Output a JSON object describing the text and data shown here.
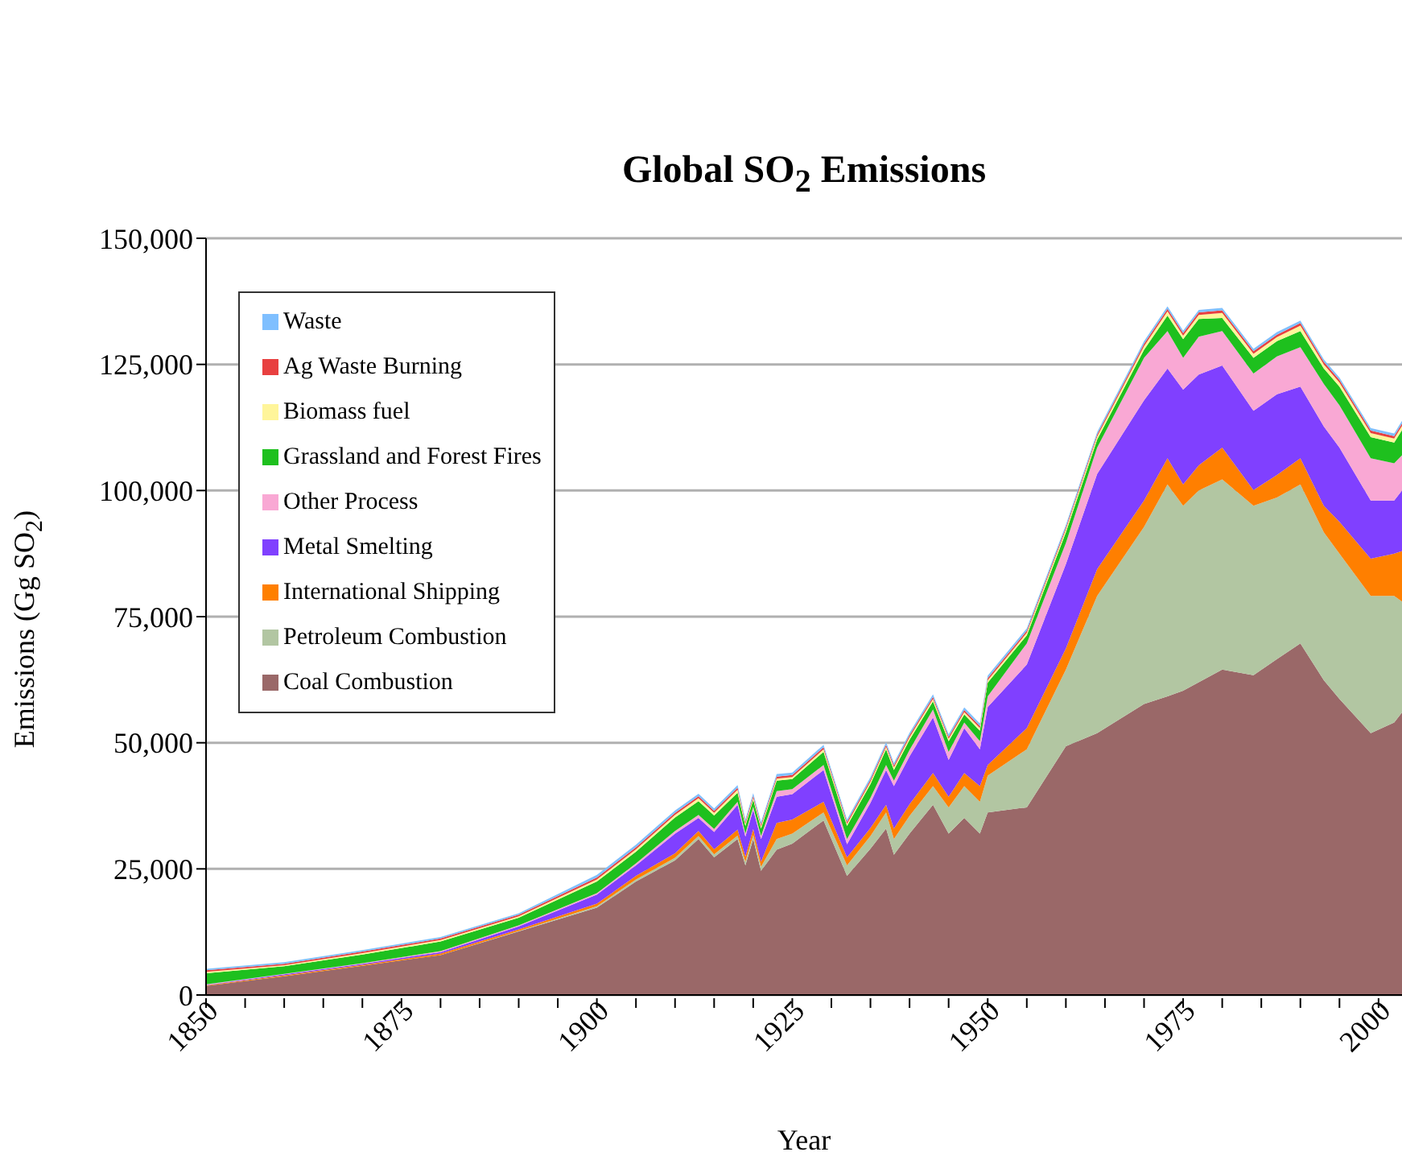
{
  "chart_data": {
    "type": "area",
    "stacked": true,
    "title": "Global SO$_{2}$ Emissions",
    "xlabel": "Year",
    "ylabel": "Emissions (Gg SO$_{2}$)",
    "x": [
      1850,
      1860,
      1870,
      1880,
      1890,
      1900,
      1905,
      1910,
      1913,
      1915,
      1918,
      1919,
      1920,
      1921,
      1923,
      1925,
      1929,
      1932,
      1935,
      1937,
      1938,
      1940,
      1943,
      1945,
      1947,
      1949,
      1950,
      1955,
      1960,
      1964,
      1970,
      1973,
      1975,
      1977,
      1980,
      1984,
      1987,
      1990,
      1993,
      1995,
      1999,
      2002,
      2003
    ],
    "series": [
      {
        "name": "Coal Combustion",
        "color": "#9a6868",
        "values": [
          1800,
          3700,
          5800,
          7900,
          12600,
          17300,
          22500,
          26700,
          30900,
          27300,
          30900,
          25700,
          30900,
          24600,
          28800,
          30000,
          34600,
          23600,
          29000,
          33000,
          27800,
          32000,
          37700,
          32000,
          35100,
          32000,
          36200,
          37200,
          49300,
          51900,
          57700,
          59200,
          60300,
          62000,
          64500,
          63400,
          66600,
          69700,
          62400,
          58700,
          51900,
          54000,
          56000
        ]
      },
      {
        "name": "Petroleum Combustion",
        "color": "#b2c6a2",
        "values": [
          0,
          0,
          0,
          0,
          100,
          300,
          400,
          500,
          600,
          600,
          700,
          700,
          800,
          800,
          2100,
          2000,
          1600,
          2100,
          2500,
          3200,
          3100,
          3500,
          3700,
          5200,
          6300,
          6300,
          7300,
          11500,
          15200,
          27200,
          35100,
          42000,
          36700,
          38000,
          37700,
          33600,
          32000,
          31500,
          29300,
          28800,
          27200,
          25100,
          22000
        ]
      },
      {
        "name": "International Shipping",
        "color": "#ff7f00",
        "values": [
          100,
          200,
          200,
          300,
          300,
          500,
          700,
          900,
          1000,
          1000,
          1200,
          1000,
          1200,
          1000,
          3200,
          2800,
          2100,
          1600,
          1600,
          1500,
          2100,
          2300,
          2600,
          2100,
          2600,
          3100,
          2100,
          4200,
          4200,
          5300,
          5200,
          5200,
          4200,
          5000,
          6300,
          3100,
          4500,
          5200,
          5300,
          6300,
          7400,
          8400,
          10000
        ]
      },
      {
        "name": "Metal Smelting",
        "color": "#8040ff",
        "values": [
          100,
          200,
          200,
          300,
          600,
          1800,
          2100,
          3900,
          2600,
          3400,
          4900,
          4000,
          3800,
          4500,
          5200,
          5000,
          6300,
          2600,
          5000,
          6900,
          8400,
          9500,
          11000,
          7300,
          8900,
          7300,
          11500,
          12600,
          16700,
          18900,
          19900,
          17800,
          18800,
          18000,
          16300,
          15700,
          16000,
          14200,
          15700,
          14700,
          11500,
          10500,
          12000
        ]
      },
      {
        "name": "Other Process",
        "color": "#f9a8d4",
        "values": [
          100,
          100,
          100,
          200,
          200,
          300,
          400,
          500,
          600,
          600,
          600,
          600,
          600,
          600,
          1100,
          1000,
          1000,
          1000,
          1000,
          1000,
          1100,
          1300,
          1600,
          1600,
          1100,
          1600,
          2100,
          4200,
          4200,
          5200,
          8400,
          7400,
          6300,
          7500,
          6800,
          7400,
          7500,
          7800,
          8400,
          8400,
          8400,
          7400,
          7000
        ]
      },
      {
        "name": "Grassland and Forest Fires",
        "color": "#1ec01e",
        "values": [
          2200,
          1500,
          1700,
          1900,
          1500,
          2300,
          2300,
          2700,
          2700,
          2700,
          1800,
          1500,
          1400,
          1500,
          2100,
          2000,
          2600,
          2600,
          2700,
          3100,
          2100,
          2000,
          1600,
          2100,
          1600,
          2100,
          2700,
          1600,
          2100,
          1600,
          1600,
          3100,
          3700,
          3500,
          2600,
          3100,
          3000,
          3200,
          3100,
          3700,
          4200,
          4100,
          5000
        ]
      },
      {
        "name": "Biomass fuel",
        "color": "#fff59a",
        "values": [
          300,
          200,
          300,
          300,
          300,
          400,
          500,
          500,
          600,
          500,
          600,
          400,
          400,
          400,
          400,
          400,
          500,
          400,
          500,
          500,
          500,
          500,
          500,
          500,
          500,
          500,
          500,
          500,
          600,
          600,
          700,
          800,
          700,
          800,
          1000,
          800,
          800,
          1100,
          800,
          800,
          800,
          800,
          800
        ]
      },
      {
        "name": "Ag Waste Burning",
        "color": "#e84040",
        "values": [
          300,
          300,
          300,
          300,
          300,
          400,
          400,
          400,
          400,
          400,
          400,
          400,
          400,
          400,
          400,
          400,
          400,
          400,
          400,
          400,
          400,
          400,
          400,
          400,
          400,
          400,
          400,
          400,
          400,
          400,
          500,
          500,
          500,
          500,
          500,
          500,
          500,
          500,
          500,
          500,
          500,
          500,
          500
        ]
      },
      {
        "name": "Waste",
        "color": "#7fbfff",
        "values": [
          300,
          300,
          300,
          300,
          300,
          500,
          500,
          500,
          500,
          500,
          500,
          500,
          500,
          500,
          500,
          500,
          500,
          500,
          500,
          500,
          500,
          500,
          500,
          500,
          500,
          500,
          500,
          500,
          500,
          500,
          500,
          500,
          500,
          500,
          500,
          500,
          500,
          500,
          500,
          500,
          500,
          500,
          500
        ]
      }
    ],
    "xlim": [
      1850,
      2003
    ],
    "xticks": [
      1850,
      {
        "value": 1855,
        "label": null
      },
      {
        "value": 1860,
        "label": null
      },
      {
        "value": 1865,
        "label": null
      },
      {
        "value": 1870,
        "label": null
      },
      1875,
      {
        "value": 1880,
        "label": null
      },
      {
        "value": 1885,
        "label": null
      },
      {
        "value": 1890,
        "label": null
      },
      {
        "value": 1895,
        "label": null
      },
      1900,
      {
        "value": 1905,
        "label": null
      },
      {
        "value": 1910,
        "label": null
      },
      {
        "value": 1915,
        "label": null
      },
      {
        "value": 1920,
        "label": null
      },
      1925,
      {
        "value": 1930,
        "label": null
      },
      {
        "value": 1935,
        "label": null
      },
      {
        "value": 1940,
        "label": null
      },
      {
        "value": 1945,
        "label": null
      },
      1950,
      {
        "value": 1955,
        "label": null
      },
      {
        "value": 1960,
        "label": null
      },
      {
        "value": 1965,
        "label": null
      },
      {
        "value": 1970,
        "label": null
      },
      1975,
      {
        "value": 1980,
        "label": null
      },
      {
        "value": 1985,
        "label": null
      },
      {
        "value": 1990,
        "label": null
      },
      {
        "value": 1995,
        "label": null
      },
      2000
    ],
    "ylim": [
      0,
      150000
    ],
    "yticks": [
      0,
      {
        "value": 25000,
        "label": "25,000"
      },
      {
        "value": 50000,
        "label": "50,000"
      },
      {
        "value": 75000,
        "label": "75,000"
      },
      {
        "value": 100000,
        "label": "100,000"
      },
      {
        "value": 125000,
        "label": "125,000"
      },
      {
        "value": 150000,
        "label": "150,000"
      }
    ],
    "grid": "y",
    "legend": "top left"
  }
}
